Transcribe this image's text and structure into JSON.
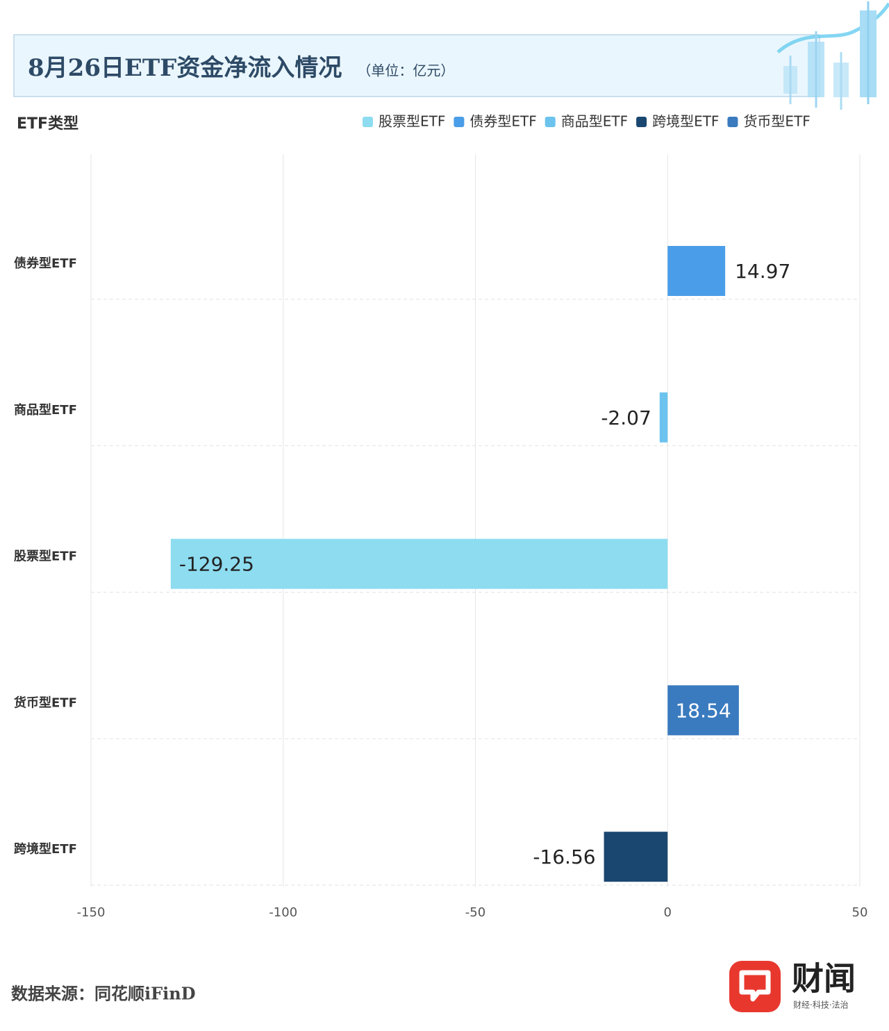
{
  "chart_data": {
    "type": "bar",
    "orientation": "horizontal",
    "title": "8月26日ETF资金净流入情况",
    "subtitle": "（单位：亿元）",
    "y_label": "ETF类型",
    "categories": [
      "债券型ETF",
      "商品型ETF",
      "股票型ETF",
      "货币型ETF",
      "跨境型ETF"
    ],
    "series": [
      {
        "name": "股票型ETF",
        "color": "#8ddcf0",
        "values": [
          null,
          null,
          -129.25,
          null,
          null
        ]
      },
      {
        "name": "债券型ETF",
        "color": "#4a9de8",
        "values": [
          14.97,
          null,
          null,
          null,
          null
        ]
      },
      {
        "name": "商品型ETF",
        "color": "#6bc3ee",
        "values": [
          null,
          -2.07,
          null,
          null,
          null
        ]
      },
      {
        "name": "跨境型ETF",
        "color": "#1a4770",
        "values": [
          null,
          null,
          null,
          null,
          -16.56
        ]
      },
      {
        "name": "货币型ETF",
        "color": "#3a7bbf",
        "values": [
          null,
          null,
          null,
          18.54,
          null
        ]
      }
    ],
    "xlim": [
      -150,
      50
    ],
    "xticks": [
      -150,
      -100,
      -50,
      0,
      50
    ],
    "grid": true,
    "legend": "top-right"
  },
  "footer": {
    "source": "数据来源：同花顺iFinD",
    "brand": "财闻",
    "slogan": "财经·科技·法治"
  }
}
